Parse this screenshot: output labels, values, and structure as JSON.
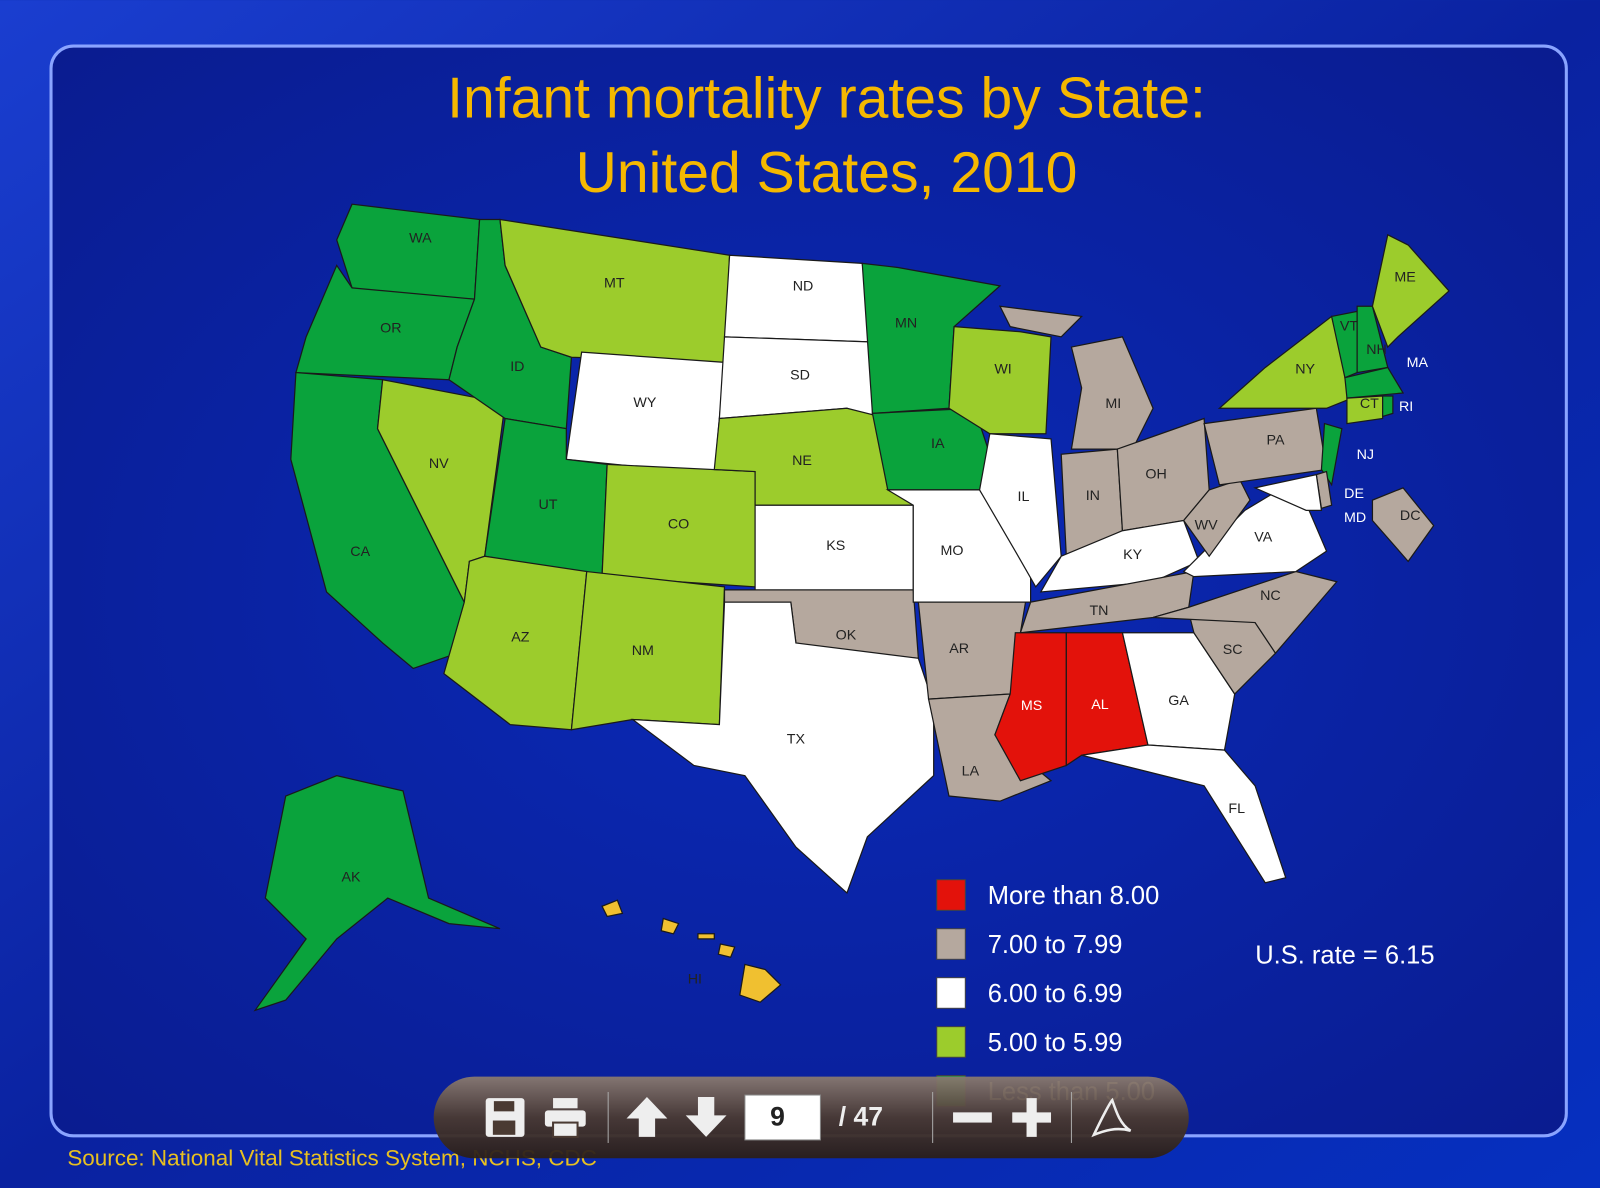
{
  "title": [
    "Infant mortality rates by State:",
    "United States, 2010"
  ],
  "states": [
    {
      "label": "WA",
      "color": "#0aa33c"
    },
    {
      "label": "OR",
      "color": "#0aa33c"
    },
    {
      "label": "CA",
      "color": "#0aa33c"
    },
    {
      "label": "NV",
      "color": "#9ccc2c"
    },
    {
      "label": "ID",
      "color": "#0aa33c"
    },
    {
      "label": "MT",
      "color": "#9ccc2c"
    },
    {
      "label": "WY",
      "color": "#ffffff"
    },
    {
      "label": "UT",
      "color": "#0aa33c"
    },
    {
      "label": "CO",
      "color": "#9ccc2c"
    },
    {
      "label": "AZ",
      "color": "#9ccc2c"
    },
    {
      "label": "NM",
      "color": "#9ccc2c"
    },
    {
      "label": "ND",
      "color": "#ffffff"
    },
    {
      "label": "SD",
      "color": "#ffffff"
    },
    {
      "label": "NE",
      "color": "#9ccc2c"
    },
    {
      "label": "KS",
      "color": "#ffffff"
    },
    {
      "label": "OK",
      "color": "#b5a89e"
    },
    {
      "label": "TX",
      "color": "#ffffff"
    },
    {
      "label": "MN",
      "color": "#0aa33c"
    },
    {
      "label": "IA",
      "color": "#0aa33c"
    },
    {
      "label": "MO",
      "color": "#ffffff"
    },
    {
      "label": "AR",
      "color": "#b5a89e"
    },
    {
      "label": "LA",
      "color": "#b5a89e"
    },
    {
      "label": "WI",
      "color": "#9ccc2c"
    },
    {
      "label": "IL",
      "color": "#ffffff"
    },
    {
      "label": "MI",
      "color": "#b5a89e"
    },
    {
      "label": "IN",
      "color": "#b5a89e"
    },
    {
      "label": "OH",
      "color": "#b5a89e"
    },
    {
      "label": "KY",
      "color": "#ffffff"
    },
    {
      "label": "TN",
      "color": "#b5a89e"
    },
    {
      "label": "MS",
      "color": "#e3120b"
    },
    {
      "label": "AL",
      "color": "#e3120b"
    },
    {
      "label": "GA",
      "color": "#ffffff"
    },
    {
      "label": "FL",
      "color": "#ffffff"
    },
    {
      "label": "SC",
      "color": "#b5a89e"
    },
    {
      "label": "NC",
      "color": "#b5a89e"
    },
    {
      "label": "VA",
      "color": "#ffffff"
    },
    {
      "label": "WV",
      "color": "#b5a89e"
    },
    {
      "label": "PA",
      "color": "#b5a89e"
    },
    {
      "label": "NY",
      "color": "#9ccc2c"
    },
    {
      "label": "NJ",
      "color": "#0aa33c"
    },
    {
      "label": "DE",
      "color": "#b5a89e"
    },
    {
      "label": "MD",
      "color": "#ffffff"
    },
    {
      "label": "DC",
      "color": "#b5a89e"
    },
    {
      "label": "VT",
      "color": "#0aa33c"
    },
    {
      "label": "NH",
      "color": "#0aa33c"
    },
    {
      "label": "ME",
      "color": "#9ccc2c"
    },
    {
      "label": "MA",
      "color": "#0aa33c"
    },
    {
      "label": "CT",
      "color": "#9ccc2c"
    },
    {
      "label": "RI",
      "color": "#0aa33c"
    },
    {
      "label": "AK",
      "color": "#0aa33c"
    },
    {
      "label": "HI",
      "color": "#f0c030"
    }
  ],
  "legend": [
    {
      "label": "More than 8.00",
      "color": "#e3120b"
    },
    {
      "label": "7.00 to 7.99",
      "color": "#b5a89e"
    },
    {
      "label": "6.00 to 6.99",
      "color": "#ffffff"
    },
    {
      "label": "5.00 to 5.99",
      "color": "#9ccc2c"
    },
    {
      "label": "Less than 5.00",
      "color": "#0aa33c"
    }
  ],
  "note": "U.S. rate = 6.15",
  "source": "Source: National Vital Statistics System, NCHS, CDC",
  "toolbar": {
    "page": "9",
    "total": "/ 47"
  }
}
